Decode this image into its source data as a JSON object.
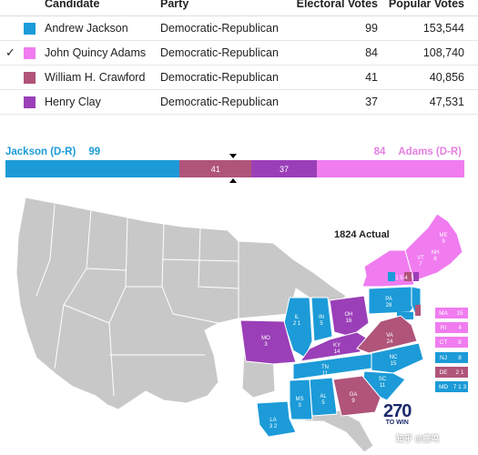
{
  "table": {
    "headers": {
      "candidate": "Candidate",
      "party": "Party",
      "electoral_votes": "Electoral Votes",
      "popular_votes": "Popular Votes"
    },
    "rows": [
      {
        "checked": "",
        "color": "#1c9bd8",
        "name": "Andrew Jackson",
        "party": "Democratic-Republican",
        "ev": "99",
        "pv": "153,544"
      },
      {
        "checked": "✓",
        "color": "#f07cf0",
        "name": "John Quincy Adams",
        "party": "Democratic-Republican",
        "ev": "84",
        "pv": "108,740"
      },
      {
        "checked": "",
        "color": "#b0547a",
        "name": "William H. Crawford",
        "party": "Democratic-Republican",
        "ev": "41",
        "pv": "40,856"
      },
      {
        "checked": "",
        "color": "#9b3fb8",
        "name": "Henry Clay",
        "party": "Democratic-Republican",
        "ev": "37",
        "pv": "47,531"
      }
    ]
  },
  "ev_bar": {
    "left_label": "Jackson (D-R)",
    "left_value": "99",
    "right_value": "84",
    "right_label": "Adams (D-R)",
    "segments": [
      {
        "name": "jackson",
        "value": 99,
        "label": "",
        "color": "#1c9bd8"
      },
      {
        "name": "crawford",
        "value": 41,
        "label": "41",
        "color": "#b0547a"
      },
      {
        "name": "clay",
        "value": 37,
        "label": "37",
        "color": "#9b3fb8"
      },
      {
        "name": "adams",
        "value": 84,
        "label": "",
        "color": "#f07cf0"
      }
    ]
  },
  "map": {
    "title": "1824 Actual",
    "logo_big": "270",
    "logo_small": "TO WIN",
    "watermark": "知乎 @鹿鸣",
    "legend": [
      {
        "state": "MA",
        "value": "15",
        "color": "#f07cf0"
      },
      {
        "state": "RI",
        "value": "4",
        "color": "#f07cf0"
      },
      {
        "state": "CT",
        "value": "8",
        "color": "#f07cf0"
      },
      {
        "state": "NJ",
        "value": "8",
        "color": "#1c9bd8"
      },
      {
        "state": "DE",
        "value": "2 1",
        "color": "#b0547a"
      },
      {
        "state": "MD",
        "value": "7 1 3",
        "color": "#1c9bd8"
      }
    ],
    "states": [
      {
        "abbr": "ME",
        "value": "9"
      },
      {
        "abbr": "NH",
        "value": "8"
      },
      {
        "abbr": "VT",
        "value": "7"
      },
      {
        "abbr": "NY",
        "value": "1 5 4"
      },
      {
        "abbr": "PA",
        "value": "28"
      },
      {
        "abbr": "OH",
        "value": "16"
      },
      {
        "abbr": "IN",
        "value": "5"
      },
      {
        "abbr": "IL",
        "value": "2 1"
      },
      {
        "abbr": "MO",
        "value": "3"
      },
      {
        "abbr": "KY",
        "value": "14"
      },
      {
        "abbr": "VA",
        "value": "24"
      },
      {
        "abbr": "NC",
        "value": "15"
      },
      {
        "abbr": "TN",
        "value": "11"
      },
      {
        "abbr": "SC",
        "value": "11"
      },
      {
        "abbr": "GA",
        "value": "9"
      },
      {
        "abbr": "AL",
        "value": "5"
      },
      {
        "abbr": "MS",
        "value": "3"
      },
      {
        "abbr": "LA",
        "value": "3 2"
      }
    ]
  }
}
